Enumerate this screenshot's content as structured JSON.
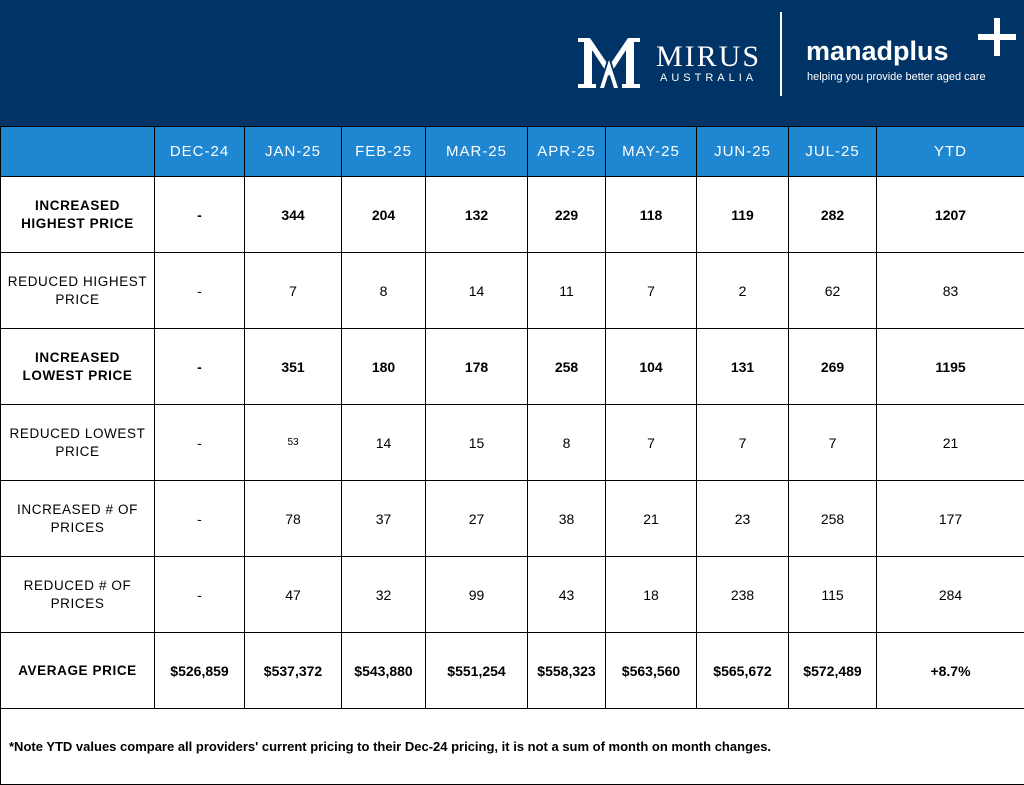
{
  "header": {
    "mirus_name": "MIRUS",
    "mirus_sub": "AUSTRALIA",
    "manad_name": "manadplus",
    "manad_tagline": "helping you provide better aged care",
    "background": "#003366"
  },
  "table": {
    "header_color": "#1f86d1",
    "columns": [
      "DEC-24",
      "JAN-25",
      "FEB-25",
      "MAR-25",
      "APR-25",
      "MAY-25",
      "JUN-25",
      "JUL-25",
      "YTD"
    ],
    "rows": [
      {
        "label": "INCREASED HIGHEST PRICE",
        "values": [
          "-",
          "344",
          "204",
          "132",
          "229",
          "118",
          "119",
          "282",
          "1207"
        ]
      },
      {
        "label": "REDUCED HIGHEST PRICE",
        "values": [
          "-",
          "7",
          "8",
          "14",
          "11",
          "7",
          "2",
          "62",
          "83"
        ]
      },
      {
        "label": "INCREASED LOWEST PRICE",
        "values": [
          "-",
          "351",
          "180",
          "178",
          "258",
          "104",
          "131",
          "269",
          "1195"
        ]
      },
      {
        "label": "REDUCED LOWEST PRICE",
        "values": [
          "-",
          "53",
          "14",
          "15",
          "8",
          "7",
          "7",
          "7",
          "21"
        ]
      },
      {
        "label": "INCREASED # OF PRICES",
        "values": [
          "-",
          "78",
          "37",
          "27",
          "38",
          "21",
          "23",
          "258",
          "177"
        ]
      },
      {
        "label": "REDUCED # OF PRICES",
        "values": [
          "-",
          "47",
          "32",
          "99",
          "43",
          "18",
          "238",
          "115",
          "284"
        ]
      },
      {
        "label": "AVERAGE PRICE",
        "values": [
          "$526,859",
          "$537,372",
          "$543,880",
          "$551,254",
          "$558,323",
          "$563,560",
          "$565,672",
          "$572,489",
          "+8.7%"
        ]
      }
    ],
    "note": "*Note YTD values compare all providers' current pricing to their Dec-24 pricing, it is not a sum of month on month changes."
  }
}
